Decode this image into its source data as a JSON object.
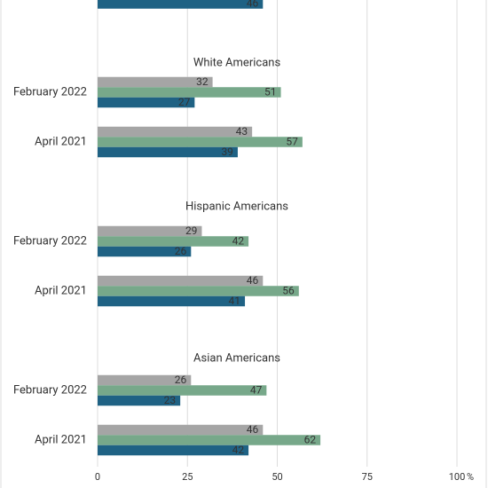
{
  "chart_data": {
    "type": "bar",
    "orientation": "horizontal",
    "colors": [
      "#a5a5a5",
      "#77a88a",
      "#1f6284"
    ],
    "label_colors": [
      "#444444",
      "#333333",
      "#ffffff"
    ],
    "xlim": [
      0,
      100
    ],
    "xticks": [
      0,
      25,
      50,
      75,
      100
    ],
    "x_unit": "%",
    "grid": true,
    "panels": [
      {
        "title": null,
        "categories": [
          null
        ],
        "series": [
          {
            "values": [
              null
            ]
          },
          {
            "values": [
              null
            ]
          },
          {
            "values": [
              46
            ]
          }
        ]
      },
      {
        "title": "White Americans",
        "categories": [
          "February 2022",
          "April 2021"
        ],
        "series": [
          {
            "values": [
              32,
              43
            ]
          },
          {
            "values": [
              51,
              57
            ]
          },
          {
            "values": [
              27,
              39
            ]
          }
        ]
      },
      {
        "title": "Hispanic Americans",
        "categories": [
          "February 2022",
          "April 2021"
        ],
        "series": [
          {
            "values": [
              29,
              46
            ]
          },
          {
            "values": [
              42,
              56
            ]
          },
          {
            "values": [
              26,
              41
            ]
          }
        ]
      },
      {
        "title": "Asian Americans",
        "categories": [
          "February 2022",
          "April 2021"
        ],
        "series": [
          {
            "values": [
              26,
              46
            ]
          },
          {
            "values": [
              47,
              62
            ]
          },
          {
            "values": [
              23,
              42
            ]
          }
        ]
      }
    ]
  }
}
